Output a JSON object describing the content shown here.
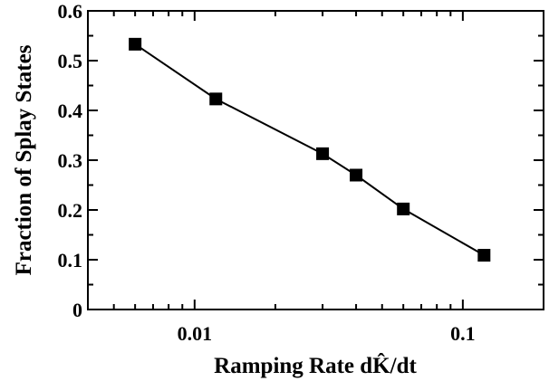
{
  "chart_data": {
    "type": "line",
    "xscale": "log",
    "xlim": [
      0.004,
      0.2
    ],
    "ylim": [
      0,
      0.6
    ],
    "xticks_major": [
      0.01,
      0.1
    ],
    "xtick_labels": [
      "0.01",
      "0.1"
    ],
    "yticks_major": [
      0,
      0.1,
      0.2,
      0.3,
      0.4,
      0.5,
      0.6
    ],
    "ytick_labels": [
      "0",
      "0.1",
      "0.2",
      "0.3",
      "0.4",
      "0.5",
      "0.6"
    ],
    "xlabel": "Ramping Rate dK̂/dt",
    "ylabel": "Fraction of Splay States",
    "marker": "square",
    "series": [
      {
        "x": [
          0.006,
          0.012,
          0.03,
          0.04,
          0.06,
          0.12
        ],
        "y": [
          0.533,
          0.423,
          0.313,
          0.27,
          0.202,
          0.109
        ]
      }
    ],
    "color": "#000000",
    "grid": false,
    "legend": "none"
  }
}
